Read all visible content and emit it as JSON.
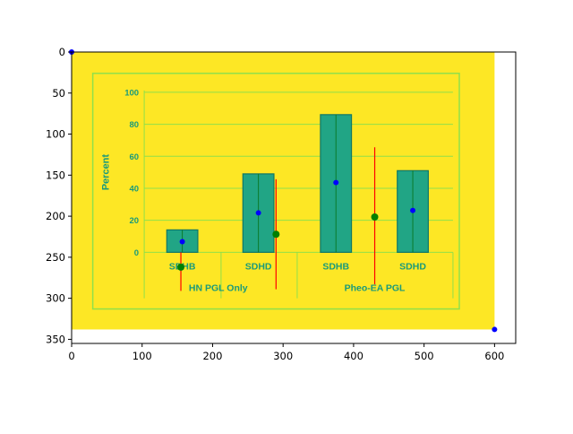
{
  "outer_axes": {
    "xlim": [
      0,
      630
    ],
    "ylim": [
      355,
      0
    ],
    "x_ticks": [
      {
        "value": 0,
        "label": "0"
      },
      {
        "value": 100,
        "label": "100"
      },
      {
        "value": 200,
        "label": "200"
      },
      {
        "value": 300,
        "label": "300"
      },
      {
        "value": 400,
        "label": "400"
      },
      {
        "value": 500,
        "label": "500"
      },
      {
        "value": 600,
        "label": "600"
      }
    ],
    "y_ticks": [
      {
        "value": 0,
        "label": "0"
      },
      {
        "value": 50,
        "label": "50"
      },
      {
        "value": 100,
        "label": "100"
      },
      {
        "value": 150,
        "label": "150"
      },
      {
        "value": 200,
        "label": "200"
      },
      {
        "value": 250,
        "label": "250"
      },
      {
        "value": 300,
        "label": "300"
      },
      {
        "value": 350,
        "label": "350"
      }
    ]
  },
  "embedded_image": {
    "extent": [
      0,
      600,
      338,
      0
    ],
    "background_color": "#fde725",
    "frame_color": "#90e04a",
    "bar_color": "#21a585",
    "ylabel": "Percent",
    "y_ticks": [
      "0",
      "20",
      "40",
      "60",
      "80",
      "100"
    ],
    "bars": [
      {
        "label": "SDHB",
        "value": 14
      },
      {
        "label": "SDHD",
        "value": 49
      },
      {
        "label": "SDHB",
        "value": 86
      },
      {
        "label": "SDHD",
        "value": 51
      }
    ],
    "group_labels": [
      "HN PGL Only",
      "Pheo-EA PGL"
    ]
  },
  "chart_data": {
    "type": "scatter",
    "xlim": [
      0,
      630
    ],
    "ylim": [
      355,
      0
    ],
    "y_inverted": true,
    "series": [
      {
        "color": "#0000ff",
        "marker": "circle",
        "points": [
          {
            "x": 0,
            "y": 0
          },
          {
            "x": 600,
            "y": 338
          },
          {
            "x": 157,
            "y": 231
          },
          {
            "x": 265,
            "y": 196
          },
          {
            "x": 375,
            "y": 159
          },
          {
            "x": 484,
            "y": 193
          }
        ]
      },
      {
        "color": "#008000",
        "marker": "circle",
        "points": [
          {
            "x": 155,
            "y": 262
          },
          {
            "x": 290,
            "y": 222
          },
          {
            "x": 430,
            "y": 201
          }
        ]
      }
    ],
    "error_bars": [
      {
        "x": 155,
        "y_low": 244,
        "y_high": 291,
        "color": "#ff0000"
      },
      {
        "x": 290,
        "y_low": 155,
        "y_high": 289,
        "color": "#ff0000"
      },
      {
        "x": 430,
        "y_low": 116,
        "y_high": 283,
        "color": "#ff0000"
      }
    ],
    "grid": false
  }
}
